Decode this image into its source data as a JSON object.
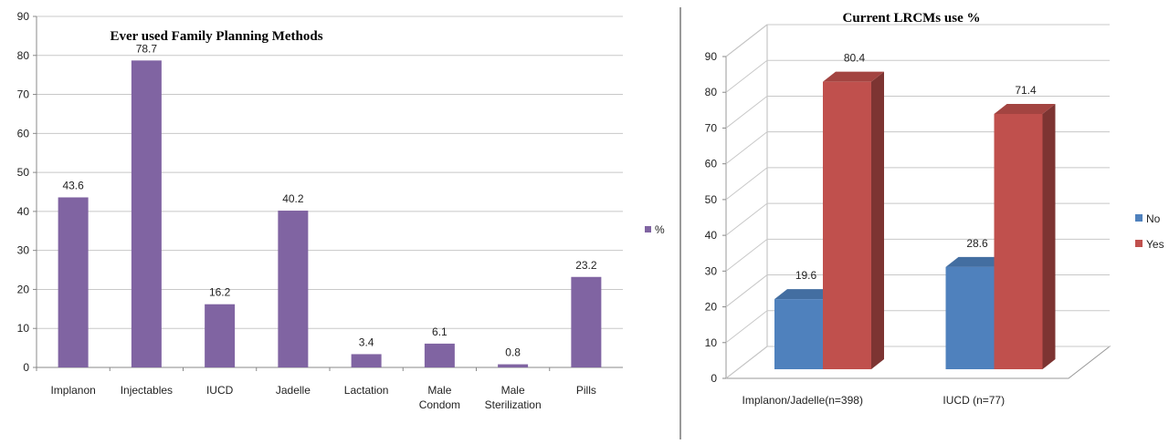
{
  "chart_data": [
    {
      "type": "bar",
      "title": "Ever used Family Planning Methods",
      "categories": [
        "Implanon",
        "Injectables",
        "IUCD",
        "Jadelle",
        "Lactation",
        "Male Condom",
        "Male Sterilization",
        "Pills"
      ],
      "series": [
        {
          "name": "%",
          "values": [
            43.6,
            78.7,
            16.2,
            40.2,
            3.4,
            6.1,
            0.8,
            23.2
          ],
          "color": "#8064a2"
        }
      ],
      "ylim": [
        0,
        90
      ],
      "yticks": [
        0,
        10,
        20,
        30,
        40,
        50,
        60,
        70,
        80,
        90
      ],
      "grid": true,
      "legend": "right"
    },
    {
      "type": "bar",
      "title": "Current LRCMs use %",
      "categories": [
        "Implanon/Jadelle(n=398)",
        "IUCD (n=77)"
      ],
      "series": [
        {
          "name": "No",
          "values": [
            19.6,
            28.6
          ],
          "color": "#4f81bd"
        },
        {
          "name": "Yes",
          "values": [
            80.4,
            71.4
          ],
          "color": "#c0504d"
        }
      ],
      "ylim": [
        0,
        90
      ],
      "yticks": [
        0,
        10,
        20,
        30,
        40,
        50,
        60,
        70,
        80,
        90
      ],
      "grid": true,
      "legend": "right",
      "style": "3d"
    }
  ]
}
